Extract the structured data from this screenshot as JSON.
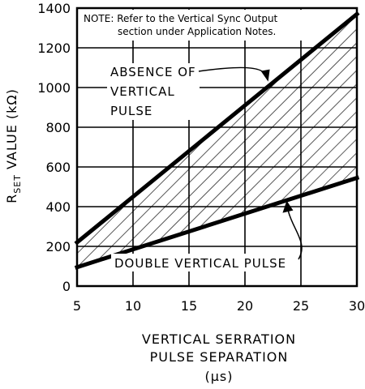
{
  "chart_data": {
    "type": "line",
    "title": "",
    "xlabel": [
      "VERTICAL SERRATION",
      "PULSE SEPARATION",
      "(μs)"
    ],
    "ylabel": {
      "prefix": "R",
      "subscript": "SET",
      "suffix": " VALUE (kΩ)"
    },
    "xlim": [
      5,
      30
    ],
    "ylim": [
      0,
      1400
    ],
    "x_ticks": [
      5,
      10,
      15,
      20,
      25,
      30
    ],
    "y_ticks": [
      0,
      200,
      400,
      600,
      800,
      1000,
      1200,
      1400
    ],
    "grid": true,
    "series": [
      {
        "x": [
          5,
          30
        ],
        "y": [
          220,
          1370
        ]
      },
      {
        "x": [
          5,
          30
        ],
        "y": [
          95,
          545
        ]
      }
    ],
    "shaded_region": "between_series",
    "note": [
      "NOTE: Refer to the Vertical Sync Output",
      "section under Application Notes."
    ],
    "annotations": [
      {
        "lines": [
          "ABSENCE OF",
          "VERTICAL",
          "PULSE"
        ],
        "points_to": {
          "x": 22,
          "y": 1026
        }
      },
      {
        "lines": [
          "DOUBLE VERTICAL PULSE"
        ],
        "points_to": {
          "x": 23.8,
          "y": 434
        }
      }
    ]
  }
}
